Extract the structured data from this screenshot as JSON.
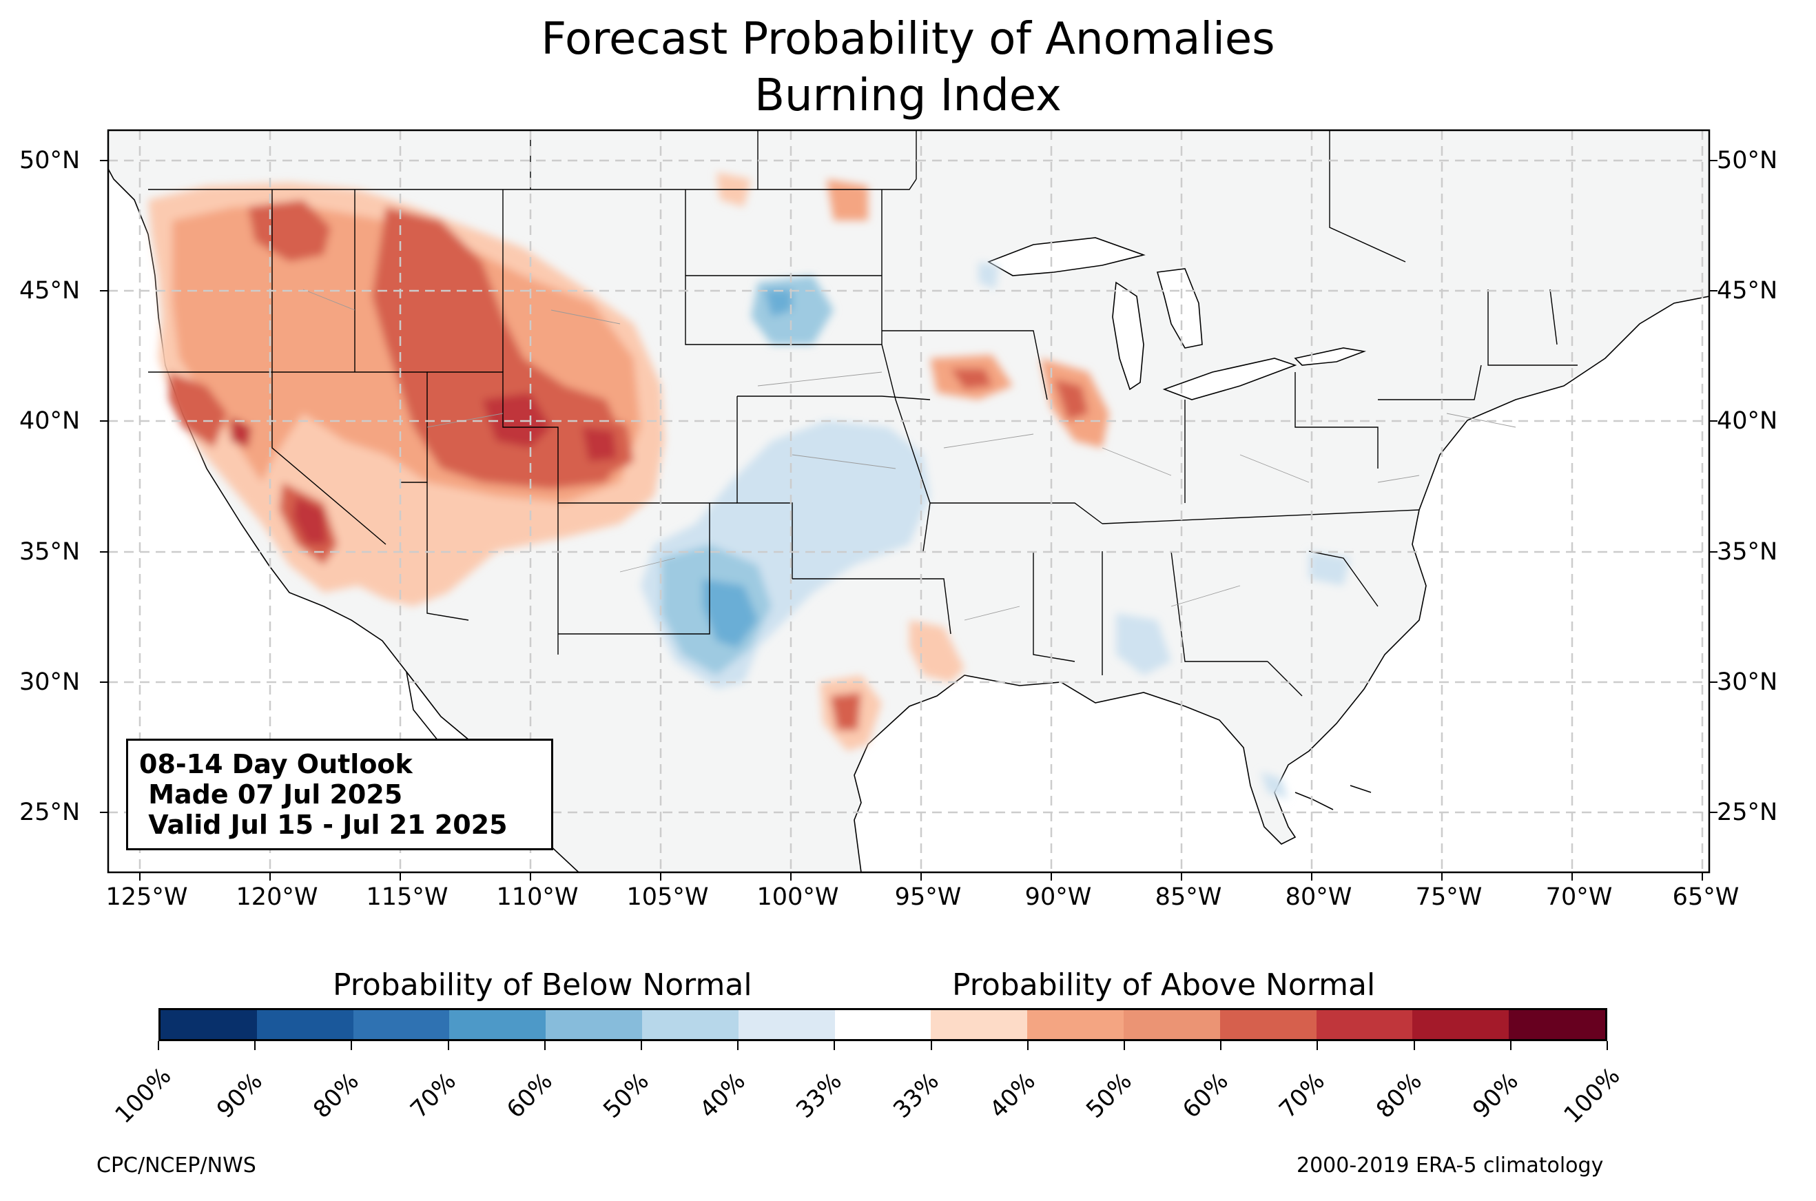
{
  "title": {
    "line1": "Forecast Probability of Anomalies",
    "line2": "Burning Index"
  },
  "map": {
    "lat_labels": [
      "50°N",
      "45°N",
      "40°N",
      "35°N",
      "30°N",
      "25°N"
    ],
    "lon_labels": [
      "125°W",
      "120°W",
      "115°W",
      "110°W",
      "105°W",
      "100°W",
      "95°W",
      "90°W",
      "85°W",
      "80°W",
      "75°W",
      "70°W",
      "65°W"
    ],
    "land_color": "#f4f5f5",
    "gridlines": "dashed gray"
  },
  "outlook_box": {
    "line1": "08-14 Day Outlook",
    "line2": " Made 07 Jul 2025",
    "line3": " Valid Jul 15 - Jul 21 2025"
  },
  "colorbar": {
    "below_label": "Probability of Below Normal",
    "above_label": "Probability of Above Normal",
    "colors": [
      "#08306b",
      "#1a589b",
      "#2f72b2",
      "#4d99c8",
      "#87bcdb",
      "#b7d7ea",
      "#dce9f4",
      "#ffffff",
      "#fddbc7",
      "#f4a582",
      "#eb9474",
      "#d6604d",
      "#c0363b",
      "#a41a2a",
      "#67001f"
    ],
    "tick_labels": [
      "100%",
      "90%",
      "80%",
      "70%",
      "60%",
      "50%",
      "40%",
      "33%",
      "33%",
      "40%",
      "50%",
      "60%",
      "70%",
      "80%",
      "90%",
      "100%"
    ]
  },
  "footer": {
    "left": "CPC/NCEP/NWS",
    "right": "2000-2019 ERA-5 climatology"
  }
}
